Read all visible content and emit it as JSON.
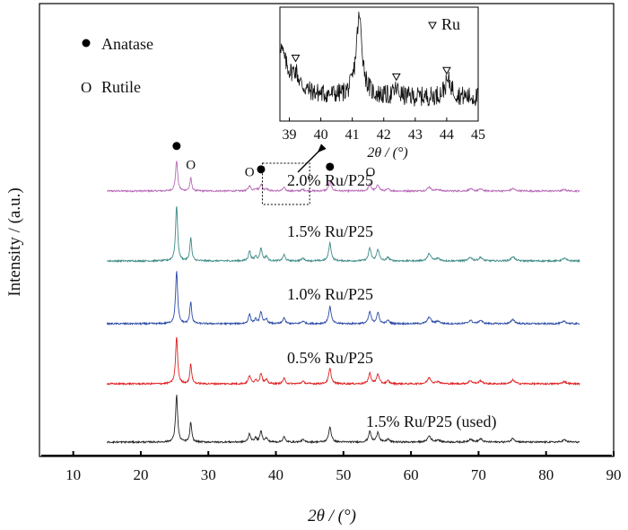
{
  "chart_data": {
    "type": "line",
    "xlabel": "2θ / (°)",
    "ylabel": "Intensity / (a.u.)",
    "xlim": [
      5,
      90
    ],
    "xticks": [
      10,
      20,
      30,
      40,
      50,
      60,
      70,
      80,
      90
    ],
    "grid": false,
    "legend": {
      "position": "top-left",
      "anatase_label": "Anatase",
      "rutile_label": "Rutile",
      "ru_label": "Ru"
    },
    "series": [
      {
        "name": "2.0% Ru/P25",
        "color": "#b86ab8",
        "x_range": [
          15,
          85
        ],
        "peak_scale": 0.55
      },
      {
        "name": "1.5% Ru/P25",
        "color": "#3d8a86",
        "x_range": [
          15,
          85
        ],
        "peak_scale": 1.0
      },
      {
        "name": "1.0% Ru/P25",
        "color": "#2b4aa6",
        "x_range": [
          15,
          85
        ],
        "peak_scale": 0.95
      },
      {
        "name": "0.5% Ru/P25",
        "color": "#e02020",
        "x_range": [
          15,
          85
        ],
        "peak_scale": 0.85
      },
      {
        "name": "1.5% Ru/P25 (used)",
        "color": "#222222",
        "x_range": [
          15,
          85
        ],
        "peak_scale": 0.85
      }
    ],
    "peaks": [
      {
        "x": 25.3,
        "h": 62,
        "w": 0.18
      },
      {
        "x": 27.4,
        "h": 26,
        "w": 0.16
      },
      {
        "x": 36.1,
        "h": 11,
        "w": 0.2
      },
      {
        "x": 37.0,
        "h": 5,
        "w": 0.2
      },
      {
        "x": 37.8,
        "h": 14,
        "w": 0.2
      },
      {
        "x": 38.6,
        "h": 5,
        "w": 0.2
      },
      {
        "x": 41.2,
        "h": 7,
        "w": 0.2
      },
      {
        "x": 44.0,
        "h": 3,
        "w": 0.25
      },
      {
        "x": 48.0,
        "h": 20,
        "w": 0.22
      },
      {
        "x": 53.9,
        "h": 14,
        "w": 0.22
      },
      {
        "x": 55.1,
        "h": 13,
        "w": 0.22
      },
      {
        "x": 56.6,
        "h": 4,
        "w": 0.22
      },
      {
        "x": 62.7,
        "h": 8,
        "w": 0.3
      },
      {
        "x": 64.0,
        "h": 3,
        "w": 0.3
      },
      {
        "x": 68.8,
        "h": 4,
        "w": 0.3
      },
      {
        "x": 70.3,
        "h": 4,
        "w": 0.3
      },
      {
        "x": 75.1,
        "h": 5,
        "w": 0.3
      },
      {
        "x": 82.7,
        "h": 3,
        "w": 0.3
      }
    ],
    "phase_markers": [
      {
        "phase": "anatase",
        "x": 25.3
      },
      {
        "phase": "rutile",
        "x": 27.4
      },
      {
        "phase": "rutile",
        "x": 36.1
      },
      {
        "phase": "anatase",
        "x": 37.8
      },
      {
        "phase": "anatase",
        "x": 48.0
      },
      {
        "phase": "rutile",
        "x": 54.0
      }
    ],
    "zoom_box": {
      "x_range": [
        38,
        45
      ]
    },
    "inset": {
      "xlabel": "2θ / (°)",
      "xlim": [
        38.7,
        45
      ],
      "xticks": [
        39,
        40,
        41,
        42,
        43,
        44,
        45
      ],
      "ru_markers": [
        39.2,
        42.4,
        44.0
      ]
    }
  }
}
